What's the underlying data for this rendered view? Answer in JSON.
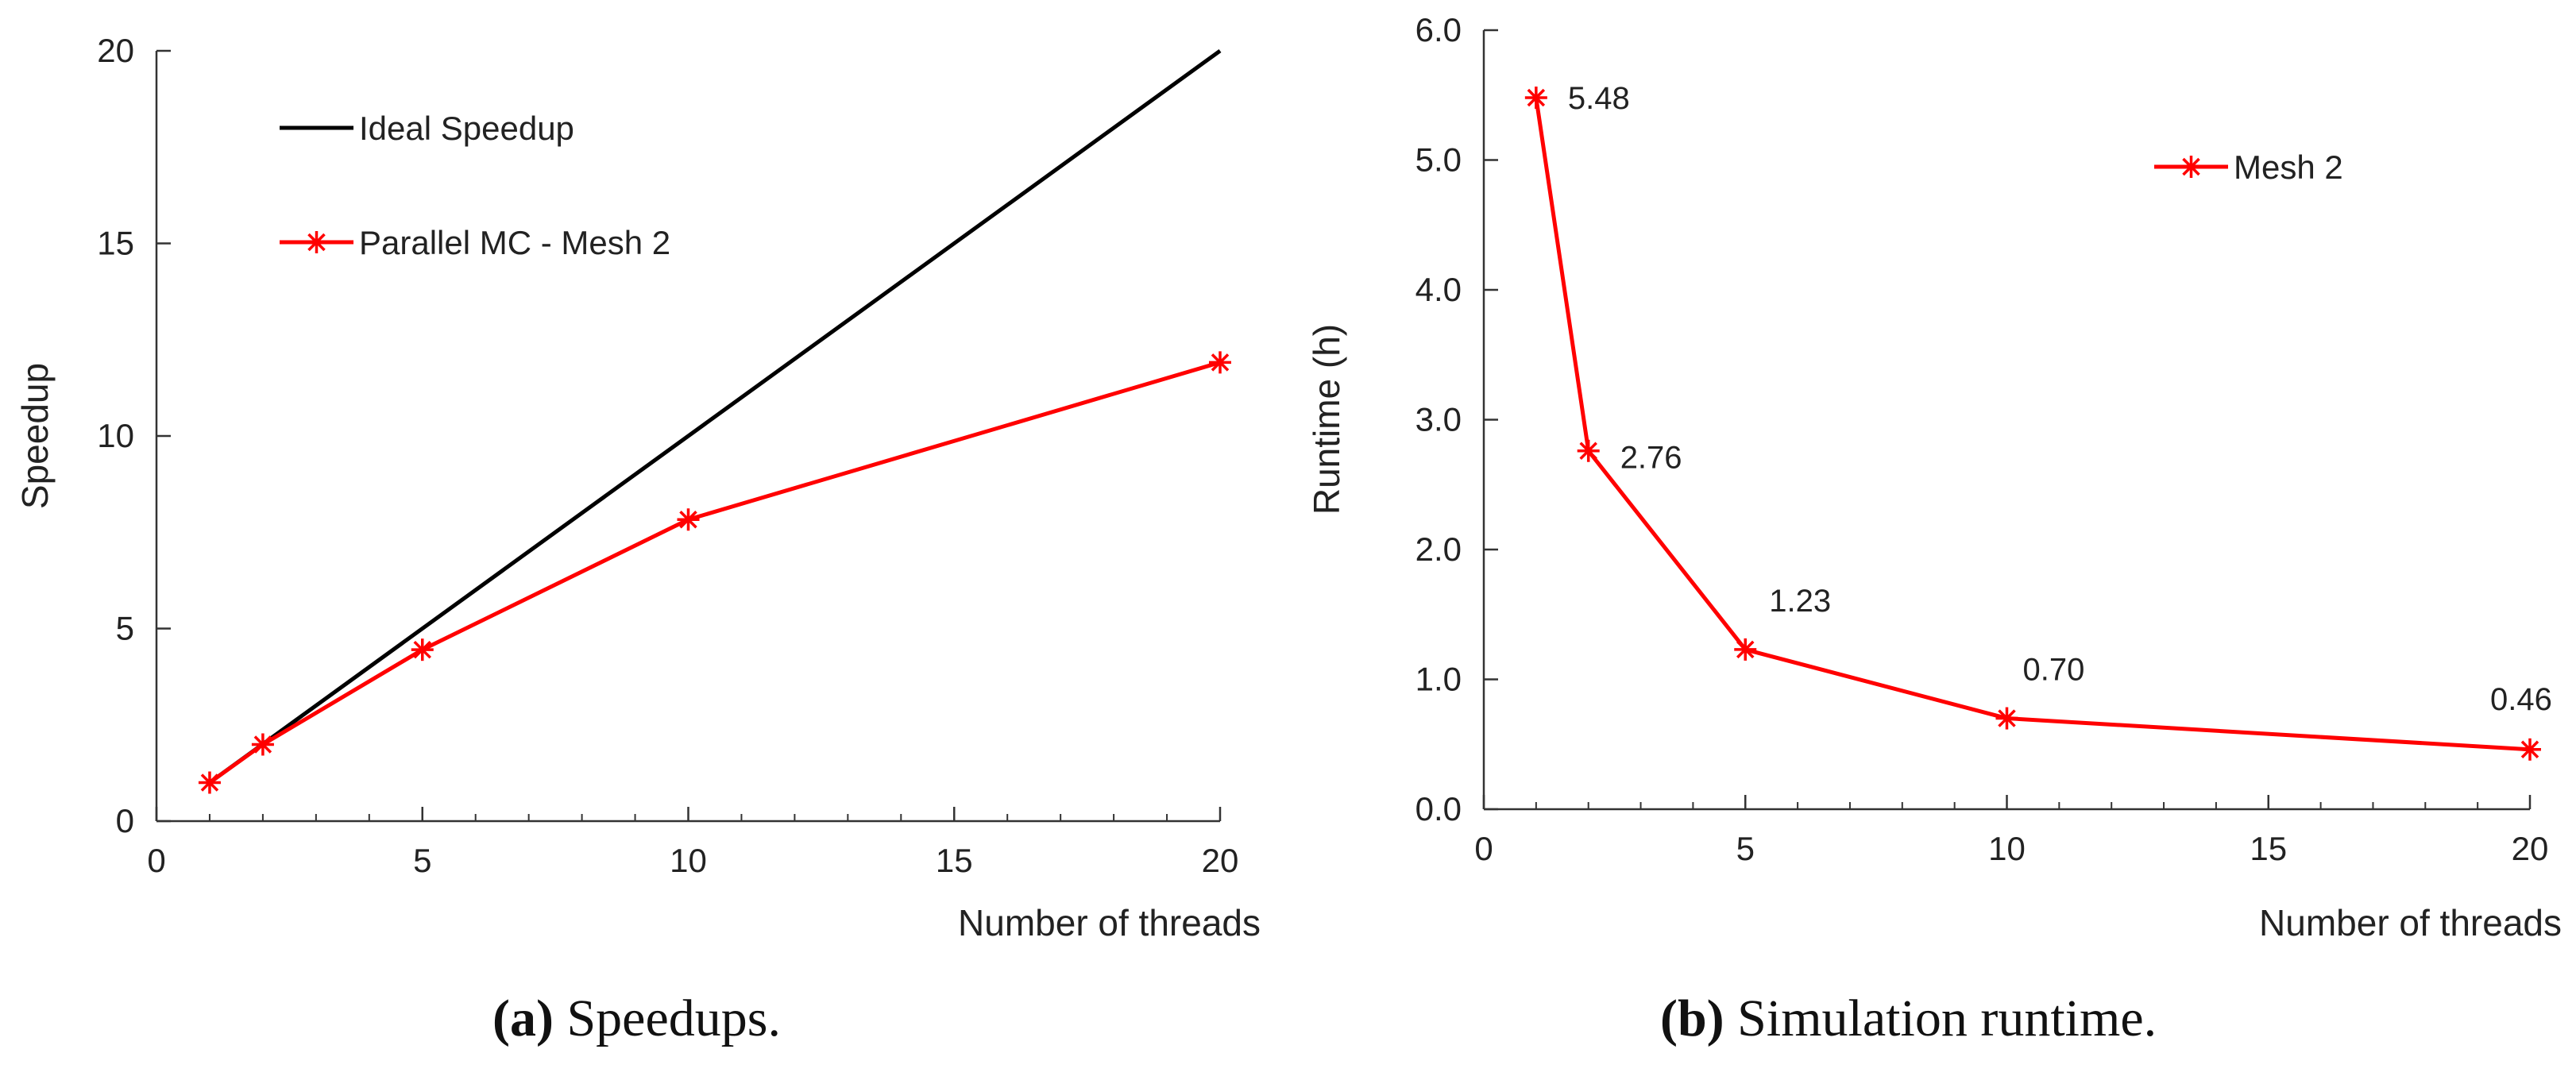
{
  "chart_data": [
    {
      "type": "line",
      "xlabel": "Number of threads",
      "ylabel": "Speedup",
      "xlim": [
        0,
        20
      ],
      "ylim": [
        0,
        20
      ],
      "xticks": [
        "0",
        "5",
        "10",
        "15",
        "20"
      ],
      "yticks": [
        "0",
        "5",
        "10",
        "15",
        "20"
      ],
      "legend_position": "top-left",
      "series": [
        {
          "name": "Ideal Speedup",
          "color": "#000000",
          "marker": "none",
          "x": [
            1,
            20
          ],
          "y": [
            1,
            20
          ]
        },
        {
          "name": "Parallel MC - Mesh 2",
          "color": "#ff0000",
          "marker": "asterisk",
          "x": [
            1,
            2,
            5,
            10,
            20
          ],
          "y": [
            1.0,
            1.99,
            4.45,
            7.83,
            11.91
          ]
        }
      ]
    },
    {
      "type": "line",
      "xlabel": "Number of threads",
      "ylabel": "Runtime (h)",
      "xlim": [
        0,
        20
      ],
      "ylim": [
        0,
        6
      ],
      "xticks": [
        "0",
        "5",
        "10",
        "15",
        "20"
      ],
      "yticks": [
        "0.0",
        "1.0",
        "2.0",
        "3.0",
        "4.0",
        "5.0",
        "6.0"
      ],
      "legend_position": "top-right",
      "series": [
        {
          "name": "Mesh 2",
          "color": "#ff0000",
          "marker": "asterisk",
          "x": [
            1,
            2,
            5,
            10,
            20
          ],
          "y": [
            5.48,
            2.76,
            1.23,
            0.7,
            0.46
          ],
          "data_labels": [
            "5.48",
            "2.76",
            "1.23",
            "0.70",
            "0.46"
          ]
        }
      ]
    }
  ],
  "captions": [
    {
      "tag": "(a)",
      "text": "Speedups."
    },
    {
      "tag": "(b)",
      "text": "Simulation runtime."
    }
  ]
}
